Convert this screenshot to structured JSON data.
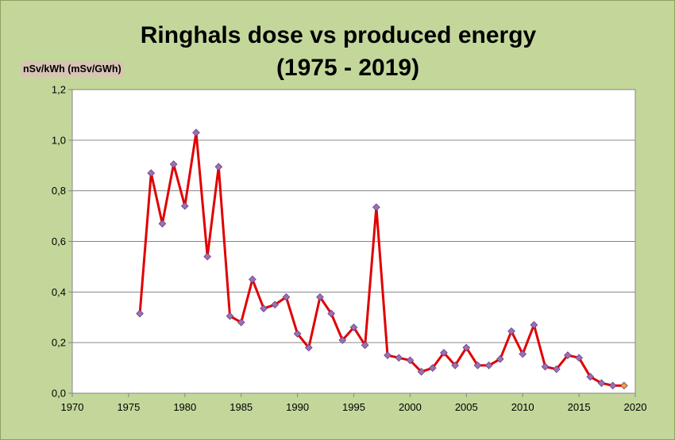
{
  "chart_data": {
    "type": "line",
    "title": "Ringhals dose vs produced energy",
    "subtitle": "(1975 - 2019)",
    "ylabel": "nSv/kWh (mSv/GWh)",
    "xlabel": "",
    "xlim": [
      1970,
      2020
    ],
    "ylim": [
      0,
      1.2
    ],
    "x_ticks": [
      "1970",
      "1975",
      "1980",
      "1985",
      "1990",
      "1995",
      "2000",
      "2005",
      "2010",
      "2015",
      "2020"
    ],
    "y_ticks": [
      "0,0",
      "0,2",
      "0,4",
      "0,6",
      "0,8",
      "1,0",
      "1,2"
    ],
    "grid": "horizontal",
    "line_color": "#e00000",
    "marker_color": "#9b72b0",
    "last_marker_color": "#f0a030",
    "series": [
      {
        "x": [
          1976,
          1977,
          1978,
          1979,
          1980,
          1981,
          1982,
          1983,
          1984,
          1985,
          1986,
          1987,
          1988,
          1989,
          1990,
          1991,
          1992,
          1993,
          1994,
          1995,
          1996,
          1997,
          1998,
          1999,
          2000,
          2001,
          2002,
          2003,
          2004,
          2005,
          2006,
          2007,
          2008,
          2009,
          2010,
          2011,
          2012,
          2013,
          2014,
          2015,
          2016,
          2017,
          2018,
          2019
        ],
        "y": [
          0.315,
          0.87,
          0.67,
          0.905,
          0.74,
          1.03,
          0.54,
          0.895,
          0.305,
          0.28,
          0.45,
          0.335,
          0.35,
          0.38,
          0.235,
          0.18,
          0.38,
          0.315,
          0.21,
          0.26,
          0.19,
          0.735,
          0.15,
          0.14,
          0.13,
          0.085,
          0.1,
          0.16,
          0.11,
          0.18,
          0.11,
          0.11,
          0.135,
          0.245,
          0.155,
          0.27,
          0.105,
          0.095,
          0.15,
          0.14,
          0.065,
          0.04,
          0.03,
          0.03
        ]
      }
    ]
  }
}
